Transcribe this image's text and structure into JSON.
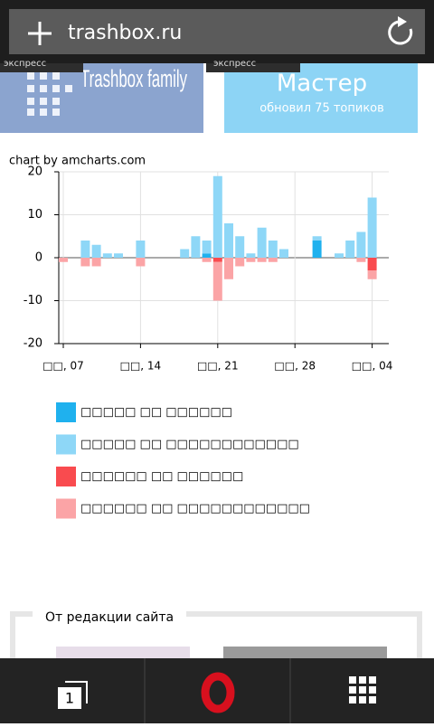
{
  "browser": {
    "url": "trashbox.ru"
  },
  "banners": [
    {
      "tag": "экспресс",
      "title": "Trashbox family"
    },
    {
      "tag": "экспресс",
      "title": "Мастер",
      "subtitle": "обновил 75 топиков"
    }
  ],
  "chart_credit": "chart by amcharts.com",
  "chart_data": {
    "type": "stacked-bar",
    "categories": [
      "□□, 07",
      null,
      null,
      null,
      null,
      null,
      null,
      "□□, 14",
      null,
      null,
      null,
      null,
      null,
      null,
      "□□, 21",
      null,
      null,
      null,
      null,
      null,
      null,
      "□□, 28",
      null,
      null,
      null,
      null,
      null,
      null,
      "□□, 04"
    ],
    "series": [
      {
        "name": "□□□□□ □□ □□□□□□",
        "color": "#1fb1ee",
        "values": [
          0,
          0,
          0,
          0,
          0,
          0,
          0,
          0,
          0,
          0,
          0,
          0,
          0,
          1,
          0,
          0,
          0,
          0,
          0,
          0,
          0,
          0,
          0,
          4,
          0,
          0,
          0,
          0,
          0
        ]
      },
      {
        "name": "□□□□□ □□ □□□□□□□□□□□□",
        "color": "#8ed7f7",
        "values": [
          0,
          0,
          4,
          3,
          1,
          1,
          0,
          4,
          0,
          0,
          0,
          2,
          5,
          3,
          19,
          8,
          5,
          1,
          7,
          4,
          2,
          0,
          0,
          1,
          0,
          1,
          4,
          6,
          14
        ]
      },
      {
        "name": "□□□□□□ □□ □□□□□□",
        "color": "#f94b4f",
        "values": [
          0,
          0,
          0,
          0,
          0,
          0,
          0,
          0,
          0,
          0,
          0,
          0,
          0,
          0,
          -1,
          0,
          0,
          0,
          0,
          0,
          0,
          0,
          0,
          0,
          0,
          0,
          0,
          0,
          -3
        ]
      },
      {
        "name": "□□□□□□ □□ □□□□□□□□□□□□",
        "color": "#fba4a6",
        "values": [
          -1,
          0,
          -2,
          -2,
          0,
          0,
          0,
          -2,
          0,
          0,
          0,
          0,
          0,
          -1,
          -9,
          -5,
          -2,
          -1,
          -1,
          -1,
          0,
          0,
          0,
          0,
          0,
          0,
          0,
          -1,
          -2
        ]
      }
    ],
    "ylim": [
      -20,
      20
    ],
    "yticks": [
      -20,
      -10,
      0,
      10,
      20
    ],
    "grid": true
  },
  "section": {
    "title": "От редакции сайта"
  },
  "tabs": {
    "count": 1
  }
}
